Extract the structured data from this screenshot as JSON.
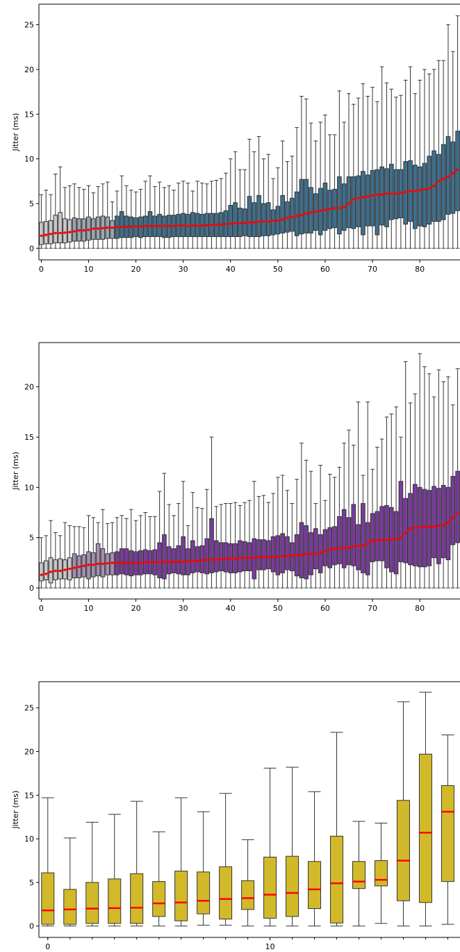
{
  "chart_data": [
    {
      "type": "box",
      "ylabel": "Jitter (ms)",
      "xlim": [
        -0.5,
        88.5
      ],
      "ylim": [
        -1.3,
        27.3
      ],
      "yticks": [
        0,
        5,
        10,
        15,
        20,
        25
      ],
      "xticks": [
        0,
        10,
        20,
        30,
        40,
        50,
        60,
        70,
        80
      ],
      "colors": {
        "box_low": "#c8c8c8",
        "box_mid": "#9aa6b0",
        "box_high": "#3e6f8e",
        "median": "#ff0000",
        "whisker": "#333333"
      },
      "median_style": "red line with dot markers",
      "positions": [
        0,
        1,
        2,
        3,
        4,
        5,
        6,
        7,
        8,
        9,
        10,
        11,
        12,
        13,
        14,
        15,
        16,
        17,
        18,
        19,
        20,
        21,
        22,
        23,
        24,
        25,
        26,
        27,
        28,
        29,
        30,
        31,
        32,
        33,
        34,
        35,
        36,
        37,
        38,
        39,
        40,
        41,
        42,
        43,
        44,
        45,
        46,
        47,
        48,
        49,
        50,
        51,
        52,
        53,
        54,
        55,
        56,
        57,
        58,
        59,
        60,
        61,
        62,
        63,
        64,
        65,
        66,
        67,
        68,
        69,
        70,
        71,
        72,
        73,
        74,
        75,
        76,
        77,
        78,
        79,
        80,
        81,
        82,
        83,
        84,
        85,
        86,
        87,
        88
      ],
      "medians": [
        1.4,
        1.5,
        1.6,
        1.7,
        1.7,
        1.75,
        1.8,
        1.9,
        2.0,
        2.0,
        2.05,
        2.2,
        2.2,
        2.25,
        2.3,
        2.3,
        2.35,
        2.4,
        2.4,
        2.4,
        2.45,
        2.45,
        2.5,
        2.5,
        2.5,
        2.5,
        2.5,
        2.5,
        2.5,
        2.55,
        2.55,
        2.5,
        2.55,
        2.5,
        2.55,
        2.6,
        2.6,
        2.65,
        2.65,
        2.7,
        2.75,
        2.8,
        2.8,
        2.85,
        2.9,
        2.9,
        2.95,
        3.0,
        3.0,
        3.1,
        3.1,
        3.2,
        3.4,
        3.5,
        3.6,
        3.7,
        3.9,
        4.0,
        4.1,
        4.2,
        4.3,
        4.4,
        4.5,
        4.5,
        4.6,
        5.0,
        5.5,
        5.6,
        5.7,
        5.8,
        5.9,
        6.0,
        6.0,
        6.1,
        6.1,
        6.1,
        6.2,
        6.3,
        6.4,
        6.4,
        6.5,
        6.6,
        6.7,
        7.0,
        7.5,
        7.8,
        8.0,
        8.4,
        8.8
      ],
      "q1": [
        0.4,
        0.5,
        0.5,
        0.6,
        0.6,
        0.6,
        0.7,
        0.8,
        0.8,
        0.8,
        0.9,
        1.0,
        1.0,
        1.0,
        1.1,
        1.1,
        1.1,
        1.2,
        1.2,
        1.2,
        1.3,
        1.2,
        1.3,
        1.3,
        1.3,
        1.3,
        1.2,
        1.2,
        1.3,
        1.3,
        1.3,
        1.3,
        1.3,
        1.3,
        1.3,
        1.3,
        1.3,
        1.3,
        1.3,
        1.3,
        1.3,
        1.3,
        1.3,
        1.4,
        1.3,
        1.3,
        1.3,
        1.4,
        1.4,
        1.5,
        1.6,
        1.7,
        1.8,
        1.9,
        1.4,
        1.6,
        1.7,
        1.7,
        2.0,
        1.5,
        2.0,
        2.2,
        2.3,
        1.6,
        2.0,
        2.3,
        2.2,
        2.4,
        1.5,
        2.5,
        2.5,
        1.5,
        2.6,
        2.4,
        3.2,
        3.3,
        3.4,
        2.7,
        3.0,
        2.2,
        2.5,
        2.4,
        2.7,
        3.0,
        3.0,
        3.2,
        3.8,
        3.9,
        4.2
      ],
      "q3": [
        2.9,
        3.0,
        3.1,
        3.7,
        4.0,
        3.3,
        3.2,
        3.4,
        3.3,
        3.3,
        3.5,
        3.3,
        3.5,
        3.6,
        3.5,
        3.1,
        3.6,
        4.1,
        3.6,
        3.5,
        3.4,
        3.5,
        3.6,
        4.1,
        3.6,
        3.8,
        3.6,
        3.7,
        3.7,
        3.8,
        3.9,
        3.8,
        4.0,
        3.9,
        3.8,
        3.9,
        3.9,
        3.9,
        4.0,
        4.2,
        4.8,
        5.1,
        4.5,
        4.4,
        5.8,
        5.1,
        5.9,
        5.0,
        5.1,
        4.3,
        4.7,
        5.9,
        5.2,
        5.6,
        6.3,
        7.7,
        7.7,
        6.8,
        6.1,
        6.7,
        7.3,
        6.5,
        6.6,
        8.0,
        7.2,
        8.0,
        8.0,
        8.1,
        8.6,
        8.2,
        8.7,
        8.8,
        9.1,
        8.9,
        9.4,
        8.8,
        8.8,
        9.7,
        9.8,
        9.3,
        9.1,
        9.5,
        10.3,
        10.9,
        10.5,
        11.6,
        12.5,
        11.9,
        13.1
      ],
      "whisker_low": [
        0,
        0,
        0,
        0,
        0,
        0,
        0,
        0,
        0,
        0,
        0,
        0,
        0,
        0,
        0,
        0,
        0,
        0,
        0,
        0,
        0,
        0,
        0,
        0,
        0,
        0,
        0,
        0,
        0,
        0,
        0,
        0,
        0,
        0,
        0,
        0,
        0,
        0,
        0,
        0,
        0,
        0,
        0,
        0,
        0,
        0,
        0,
        0,
        0,
        0,
        0,
        0,
        0,
        0,
        0,
        0,
        0,
        0,
        0,
        0,
        0,
        0,
        0,
        0,
        0,
        0,
        0,
        0,
        0,
        0,
        0,
        0,
        0,
        0,
        0,
        0,
        0,
        0,
        0,
        0,
        0,
        0,
        0,
        0,
        0,
        0,
        0,
        0,
        0
      ],
      "whisker_high": [
        6.0,
        6.5,
        6.0,
        8.3,
        9.1,
        6.8,
        7.0,
        7.2,
        6.8,
        6.6,
        7.0,
        6.2,
        6.9,
        7.2,
        7.4,
        5.2,
        6.4,
        8.1,
        7.0,
        6.5,
        6.3,
        6.6,
        7.5,
        8.1,
        6.9,
        7.4,
        6.8,
        7.0,
        6.5,
        7.3,
        7.5,
        7.3,
        6.4,
        7.5,
        7.3,
        7.2,
        7.5,
        7.6,
        7.8,
        8.4,
        10.0,
        10.8,
        8.8,
        8.8,
        12.2,
        10.8,
        12.5,
        10.0,
        10.5,
        7.8,
        9.0,
        12.0,
        9.7,
        10.3,
        13.5,
        17.0,
        16.7,
        14.0,
        12.0,
        14.1,
        14.9,
        12.7,
        12.7,
        17.6,
        14.1,
        17.3,
        16.1,
        16.8,
        18.4,
        17.0,
        18.0,
        16.4,
        20.3,
        18.5,
        17.8,
        16.9,
        17.1,
        18.8,
        20.3,
        17.3,
        18.8,
        20.0,
        19.5,
        20.0,
        21.0,
        21.0,
        25.0,
        22.0,
        26.0
      ],
      "x_annotations": [
        "0",
        "10",
        "20",
        "30",
        "40",
        "50",
        "60",
        "70",
        "80"
      ]
    },
    {
      "type": "box",
      "ylabel": "Jitter (ms)",
      "xlim": [
        -0.5,
        88.5
      ],
      "ylim": [
        -1.1,
        24.4
      ],
      "yticks": [
        0,
        5,
        10,
        15,
        20
      ],
      "xticks": [
        0,
        10,
        20,
        30,
        40,
        50,
        60,
        70,
        80
      ],
      "colors": {
        "box_low": "#c8c8c8",
        "box_mid": "#a48fb4",
        "box_high": "#7a3b9c",
        "median": "#ff0000",
        "whisker": "#333333"
      },
      "median_style": "red line with dot markers",
      "positions": [
        0,
        1,
        2,
        3,
        4,
        5,
        6,
        7,
        8,
        9,
        10,
        11,
        12,
        13,
        14,
        15,
        16,
        17,
        18,
        19,
        20,
        21,
        22,
        23,
        24,
        25,
        26,
        27,
        28,
        29,
        30,
        31,
        32,
        33,
        34,
        35,
        36,
        37,
        38,
        39,
        40,
        41,
        42,
        43,
        44,
        45,
        46,
        47,
        48,
        49,
        50,
        51,
        52,
        53,
        54,
        55,
        56,
        57,
        58,
        59,
        60,
        61,
        62,
        63,
        64,
        65,
        66,
        67,
        68,
        69,
        70,
        71,
        72,
        73,
        74,
        75,
        76,
        77,
        78,
        79,
        80,
        81,
        82,
        83,
        84,
        85,
        86,
        87,
        88
      ],
      "medians": [
        1.3,
        1.4,
        1.6,
        1.7,
        1.7,
        1.8,
        1.9,
        2.0,
        2.1,
        2.2,
        2.3,
        2.3,
        2.4,
        2.4,
        2.45,
        2.5,
        2.5,
        2.5,
        2.5,
        2.5,
        2.5,
        2.5,
        2.55,
        2.55,
        2.55,
        2.55,
        2.6,
        2.6,
        2.6,
        2.6,
        2.6,
        2.65,
        2.7,
        2.7,
        2.75,
        2.8,
        2.8,
        2.8,
        2.85,
        2.85,
        2.9,
        2.9,
        3.0,
        3.0,
        3.0,
        3.0,
        3.05,
        3.05,
        3.1,
        3.1,
        3.1,
        3.15,
        3.2,
        3.2,
        3.3,
        3.3,
        3.35,
        3.4,
        3.4,
        3.5,
        3.7,
        3.8,
        3.9,
        3.9,
        4.0,
        4.0,
        4.1,
        4.2,
        4.2,
        4.4,
        4.7,
        4.75,
        4.75,
        4.8,
        4.8,
        4.9,
        5.0,
        5.5,
        5.9,
        6.0,
        6.0,
        6.1,
        6.1,
        6.1,
        6.2,
        6.2,
        6.5,
        7.0,
        7.4
      ],
      "q1": [
        0.7,
        0.8,
        0.5,
        0.8,
        0.9,
        0.9,
        0.8,
        1.0,
        1.0,
        1.1,
        0.9,
        1.1,
        1.2,
        1.1,
        1.3,
        1.3,
        1.3,
        1.4,
        1.3,
        1.2,
        1.3,
        1.3,
        1.4,
        1.4,
        1.3,
        1.0,
        0.9,
        1.4,
        1.5,
        1.4,
        1.3,
        1.3,
        1.5,
        1.6,
        1.5,
        1.4,
        1.5,
        1.6,
        1.7,
        1.6,
        1.5,
        1.5,
        1.6,
        1.7,
        1.7,
        0.9,
        1.8,
        1.8,
        1.9,
        1.6,
        1.3,
        1.5,
        1.8,
        1.7,
        1.2,
        1.0,
        0.9,
        1.3,
        1.9,
        1.5,
        2.2,
        2.0,
        2.3,
        2.4,
        2.0,
        2.3,
        2.2,
        1.8,
        1.5,
        1.3,
        2.6,
        2.7,
        2.7,
        2.0,
        1.6,
        1.4,
        2.6,
        2.5,
        2.3,
        2.2,
        2.1,
        2.1,
        2.2,
        3.0,
        2.4,
        3.0,
        2.8,
        4.3,
        4.5
      ],
      "q3": [
        2.5,
        2.7,
        3.0,
        2.8,
        2.9,
        2.8,
        3.0,
        3.4,
        3.2,
        3.3,
        3.6,
        3.5,
        4.4,
        3.9,
        3.4,
        3.5,
        3.6,
        3.9,
        3.9,
        3.7,
        3.6,
        3.7,
        3.8,
        3.7,
        3.8,
        4.5,
        5.3,
        4.1,
        3.9,
        4.2,
        5.1,
        3.9,
        4.7,
        4.1,
        4.2,
        4.9,
        6.9,
        4.7,
        4.5,
        4.5,
        4.4,
        4.4,
        4.7,
        4.6,
        4.5,
        4.9,
        4.8,
        4.8,
        4.7,
        5.1,
        5.2,
        5.4,
        5.1,
        4.5,
        5.3,
        6.5,
        6.2,
        5.5,
        5.9,
        5.3,
        5.8,
        6.0,
        6.1,
        7.1,
        7.8,
        7.0,
        8.3,
        6.3,
        8.4,
        6.5,
        7.4,
        7.6,
        8.1,
        8.2,
        8.0,
        7.6,
        10.6,
        8.9,
        9.4,
        10.3,
        10.0,
        9.8,
        9.7,
        10.1,
        9.9,
        10.2,
        10.0,
        11.1,
        11.6
      ],
      "whisker_low": [
        0,
        0,
        0,
        0,
        0,
        0,
        0,
        0,
        0,
        0,
        0,
        0,
        0,
        0,
        0,
        0,
        0,
        0,
        0,
        0,
        0,
        0,
        0,
        0,
        0,
        0,
        0,
        0,
        0,
        0,
        0,
        0,
        0,
        0,
        0,
        0,
        0,
        0,
        0,
        0,
        0,
        0,
        0,
        0,
        0,
        0,
        0,
        0,
        0,
        0,
        0,
        0,
        0,
        0,
        0,
        0,
        0,
        0,
        0,
        0,
        0,
        0,
        0,
        0,
        0,
        0,
        0,
        0,
        0,
        0,
        0,
        0,
        0,
        0,
        0,
        0,
        0,
        0,
        0,
        0,
        0,
        0,
        0,
        0,
        0,
        0,
        0,
        0,
        0
      ],
      "whisker_high": [
        5.0,
        5.2,
        6.7,
        5.5,
        5.2,
        6.5,
        6.2,
        6.1,
        6.1,
        6.0,
        7.2,
        7.0,
        6.5,
        7.8,
        6.4,
        6.5,
        7.0,
        7.2,
        6.9,
        7.8,
        6.7,
        7.2,
        7.5,
        7.1,
        7.1,
        9.6,
        11.4,
        8.3,
        7.2,
        8.4,
        10.6,
        6.2,
        9.5,
        8.0,
        7.9,
        9.8,
        15.0,
        8.1,
        8.3,
        8.4,
        8.4,
        8.5,
        8.2,
        8.5,
        8.7,
        10.6,
        9.1,
        9.2,
        8.5,
        9.4,
        11.0,
        11.2,
        9.7,
        8.4,
        10.8,
        14.4,
        12.7,
        11.6,
        8.4,
        12.2,
        8.7,
        11.3,
        11.0,
        12.0,
        14.4,
        15.7,
        14.2,
        18.5,
        11.2,
        18.5,
        11.8,
        14.0,
        14.8,
        17.0,
        17.3,
        18.0,
        15.0,
        22.5,
        18.4,
        19.3,
        23.3,
        22.0,
        21.3,
        19.0,
        21.7,
        20.5,
        21.0,
        18.2,
        21.8
      ],
      "x_annotations": [
        "0",
        "10",
        "20",
        "30",
        "40",
        "50",
        "60",
        "70",
        "80"
      ]
    },
    {
      "type": "box",
      "ylabel": "Jitter (ms)",
      "xlim": [
        -0.4,
        18.55
      ],
      "ylim": [
        -1.3,
        28.0
      ],
      "yticks": [
        0,
        5,
        10,
        15,
        20,
        25
      ],
      "xticks": [
        0,
        10
      ],
      "colors": {
        "box": "#d2b929",
        "median": "#ff0000",
        "whisker": "#333333"
      },
      "median_style": "red line",
      "positions": [
        0,
        1,
        2,
        3,
        4,
        5,
        6,
        7,
        8,
        9,
        10,
        11,
        12,
        13,
        14,
        15,
        16,
        17,
        18
      ],
      "medians": [
        1.8,
        1.9,
        2.0,
        2.05,
        2.1,
        2.6,
        2.7,
        2.9,
        3.1,
        3.2,
        3.6,
        3.8,
        4.2,
        4.9,
        5.1,
        5.3,
        7.5,
        10.7,
        13.1
      ],
      "q1": [
        0.2,
        0.2,
        0.3,
        0.3,
        0.3,
        1.1,
        0.6,
        1.4,
        0.8,
        1.9,
        0.9,
        1.1,
        2.0,
        0.35,
        4.3,
        4.6,
        2.9,
        2.7,
        5.1
      ],
      "q3": [
        6.1,
        4.2,
        5.0,
        5.4,
        6.0,
        5.1,
        6.3,
        6.2,
        6.8,
        5.2,
        7.9,
        8.0,
        7.4,
        10.3,
        7.4,
        7.5,
        14.4,
        19.7,
        16.1
      ],
      "whisker_low": [
        0,
        0,
        0,
        0,
        0,
        0,
        0,
        0.1,
        0.1,
        0,
        0,
        0,
        0,
        0,
        0,
        0.3,
        0,
        0,
        0.2
      ],
      "whisker_high": [
        14.7,
        10.1,
        11.9,
        12.8,
        14.3,
        10.8,
        14.7,
        13.1,
        15.2,
        9.9,
        18.1,
        18.2,
        15.4,
        22.2,
        12.0,
        11.8,
        25.7,
        26.8,
        21.9
      ],
      "x_annotations": [
        "0",
        "10"
      ]
    }
  ]
}
